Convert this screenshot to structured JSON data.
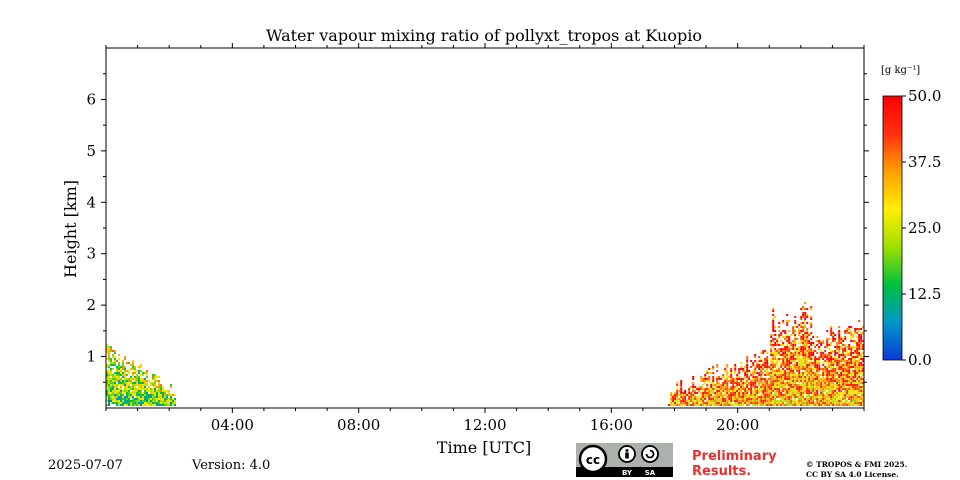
{
  "chart_data": {
    "type": "heatmap",
    "title": "Water vapour mixing ratio of pollyxt_tropos at Kuopio",
    "xlabel": "Time [UTC]",
    "ylabel": "Height [km]",
    "xlim_hours": [
      0,
      24
    ],
    "ylim_km": [
      0,
      7
    ],
    "x_ticks": [
      "04:00",
      "08:00",
      "12:00",
      "16:00",
      "20:00"
    ],
    "x_tick_hours": [
      4,
      8,
      12,
      16,
      20
    ],
    "y_ticks": [
      "1",
      "2",
      "3",
      "4",
      "5",
      "6"
    ],
    "y_tick_values": [
      1,
      2,
      3,
      4,
      5,
      6
    ],
    "colorbar": {
      "unit_label": "[g kg⁻¹]",
      "range": [
        0,
        50
      ],
      "ticks": [
        "0.0",
        "12.5",
        "25.0",
        "37.5",
        "50.0"
      ],
      "colormap": [
        "#0b3bd6",
        "#0096c8",
        "#00c040",
        "#a0e000",
        "#ffef00",
        "#ffa000",
        "#ff3010",
        "#ff0000"
      ]
    },
    "data_regions": [
      {
        "start_hour": 0.0,
        "end_hour": 2.2,
        "top_km": 1.25,
        "mean_value": 20
      },
      {
        "start_hour": 17.8,
        "end_hour": 24.0,
        "top_km": 2.6,
        "mean_value": 35
      }
    ],
    "grid": false
  },
  "footer": {
    "date": "2025-07-07",
    "version": "Version: 4.0",
    "badge_by": "BY",
    "badge_sa": "SA",
    "badge_cc": "cc",
    "preliminary": "Preliminary",
    "results": "Results.",
    "copyright_line1": "© TROPOS & FMI 2025.",
    "copyright_line2": "CC BY SA 4.0 License."
  }
}
